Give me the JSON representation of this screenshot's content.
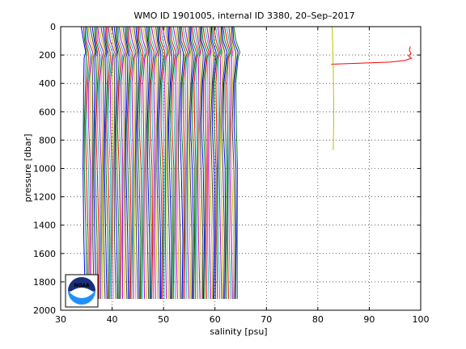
{
  "chart_data": {
    "type": "line",
    "title": "WMO ID 1901005, internal ID 3380, 20–Sep–2017",
    "xlabel": "salinity [psu]",
    "ylabel": "pressure [dbar]",
    "xlim": [
      30,
      100
    ],
    "ylim": [
      0,
      2000
    ],
    "y_reversed": true,
    "xticks": [
      30,
      40,
      50,
      60,
      70,
      80,
      90,
      100
    ],
    "yticks": [
      0,
      200,
      400,
      600,
      800,
      1000,
      1200,
      1400,
      1600,
      1800,
      2000
    ],
    "grid": "dotted",
    "logo": "noaa-logo",
    "logo_text": "NOAA",
    "profile_palette": [
      "#0000ff",
      "#008000",
      "#ff0000",
      "#00bfbf",
      "#bf00bf",
      "#bfbf00",
      "#404040"
    ],
    "offset_spacing_psu": 0.3,
    "gap_profiles": {
      "start_index": 30,
      "count": 37,
      "base_offset_psu": 19.0,
      "max_pressure": 1920
    },
    "series_groups": [
      {
        "group": "profiles-a",
        "count": 63,
        "base_offset_psu": 0.0,
        "points": [
          {
            "p": 0,
            "s": 34.0
          },
          {
            "p": 100,
            "s": 34.3
          },
          {
            "p": 180,
            "s": 34.9
          },
          {
            "p": 220,
            "s": 34.7
          },
          {
            "p": 400,
            "s": 34.4
          },
          {
            "p": 700,
            "s": 34.3
          },
          {
            "p": 1000,
            "s": 34.45
          },
          {
            "p": 1500,
            "s": 34.6
          },
          {
            "p": 1920,
            "s": 34.65
          }
        ]
      }
    ],
    "end_series": [
      {
        "name": "",
        "color": "#ff0000",
        "points": [
          {
            "s": 82.6,
            "p": 265
          },
          {
            "s": 88.0,
            "p": 258
          },
          {
            "s": 94.0,
            "p": 250
          },
          {
            "s": 97.0,
            "p": 238
          },
          {
            "s": 98.2,
            "p": 222
          },
          {
            "s": 97.6,
            "p": 205
          },
          {
            "s": 98.1,
            "p": 190
          },
          {
            "s": 97.8,
            "p": 165
          },
          {
            "s": 98.0,
            "p": 140
          }
        ]
      },
      {
        "name": "",
        "color": "#bfbf00",
        "points": [
          {
            "s": 82.8,
            "p": 0
          },
          {
            "s": 83.0,
            "p": 300
          },
          {
            "s": 83.1,
            "p": 600
          },
          {
            "s": 83.0,
            "p": 870
          }
        ]
      }
    ]
  }
}
